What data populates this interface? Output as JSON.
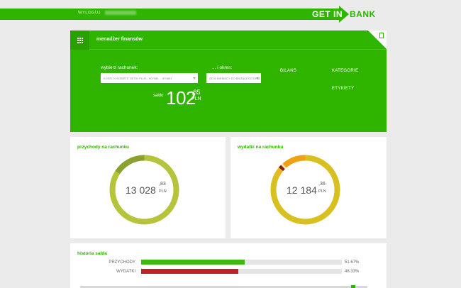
{
  "header": {
    "welcome_label": "WYLOGUJ",
    "brand_part1": "GET IN",
    "brand_part2": "BANK"
  },
  "manager": {
    "title": "menadżer finansów",
    "account_label": "wybierz rachunek:",
    "account_value": "KONTO OSOBISTE GETIN PLUS - 607085 ... 870801",
    "period_label": "... i okres:",
    "period_value": "OD 6 MIESIĘCY DO BIEŻĄCEGO DNIA",
    "links": [
      "BILANS",
      "KATEGORIE",
      "ETYKIETY"
    ],
    "saldo_label": "saldo",
    "saldo_int": "102",
    "saldo_dec": ",85",
    "saldo_currency": "PLN"
  },
  "income": {
    "title": "przychody na rachunku",
    "value_int": "13 028",
    "value_dec": ",83",
    "value_unit": "PLN",
    "segments": [
      {
        "fraction": 0.84,
        "color": "#b5c43a"
      },
      {
        "fraction": 0.16,
        "color": "#8aa02f"
      }
    ]
  },
  "expenses": {
    "title": "wydatki na rachunku",
    "value_int": "12 184",
    "value_dec": ",36",
    "value_unit": "PLN",
    "segments": [
      {
        "fraction": 0.82,
        "color": "#d8c020"
      },
      {
        "fraction": 0.04,
        "color": "#e8b820"
      },
      {
        "fraction": 0.015,
        "color": "#8b1a1a"
      },
      {
        "fraction": 0.01,
        "color": "#f0e6b0"
      },
      {
        "fraction": 0.115,
        "color": "#f0a010"
      }
    ]
  },
  "history": {
    "title": "historia salda",
    "rows": [
      {
        "label": "PRZYCHODY",
        "fraction": 0.5167,
        "pct": "51.67%",
        "color": "#3dba10"
      },
      {
        "label": "WYDATKI",
        "fraction": 0.4833,
        "pct": "48.33%",
        "color": "#c0202a"
      }
    ]
  },
  "colors": {
    "brand_green": "#2fb400",
    "background": "#ebebeb"
  },
  "icons": {
    "grid": "apps-grid-icon",
    "corner": "document-icon"
  }
}
